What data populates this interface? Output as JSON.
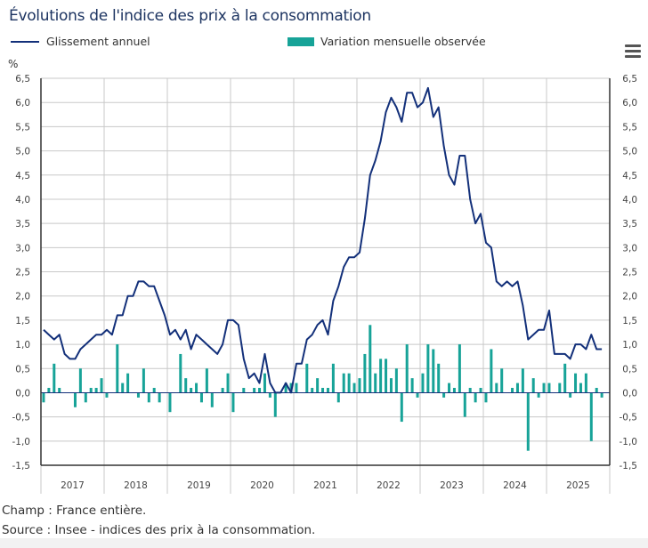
{
  "title": "Évolutions de l'indice des prix à la consommation",
  "legend": {
    "line_label": "Glissement annuel",
    "bar_label": "Variation mensuelle observée"
  },
  "menu_icon": "hamburger-menu-icon",
  "notes": {
    "champ": "Champ : France entière.",
    "source": "Source : Insee - indices des prix à la consommation."
  },
  "chart_data": {
    "type": "bar+line",
    "title": "Évolutions de l'indice des prix à la consommation",
    "ylabel": "%",
    "ylim": [
      -1.5,
      6.5
    ],
    "yticks": [
      "6,5",
      "6,0",
      "5,5",
      "5,0",
      "4,5",
      "4,0",
      "3,5",
      "3,0",
      "2,5",
      "2,0",
      "1,5",
      "1,0",
      "0,5",
      "0,0",
      "-0,5",
      "-1,0",
      "-1,5"
    ],
    "x_start": "2017-01",
    "x_end": "2025-11",
    "frequency": "monthly",
    "years": [
      "2017",
      "2018",
      "2019",
      "2020",
      "2021",
      "2022",
      "2023",
      "2024",
      "2025"
    ],
    "grid": true,
    "colors": {
      "line": "#13307a",
      "bars": "#17a398"
    },
    "series": [
      {
        "name": "Glissement annuel",
        "type": "line",
        "values": [
          1.3,
          1.2,
          1.1,
          1.2,
          0.8,
          0.7,
          0.7,
          0.9,
          1.0,
          1.1,
          1.2,
          1.2,
          1.3,
          1.2,
          1.6,
          1.6,
          2.0,
          2.0,
          2.3,
          2.3,
          2.2,
          2.2,
          1.9,
          1.6,
          1.2,
          1.3,
          1.1,
          1.3,
          0.9,
          1.2,
          1.1,
          1.0,
          0.9,
          0.8,
          1.0,
          1.5,
          1.5,
          1.4,
          0.7,
          0.3,
          0.4,
          0.2,
          0.8,
          0.2,
          0.0,
          0.0,
          0.2,
          0.0,
          0.6,
          0.6,
          1.1,
          1.2,
          1.4,
          1.5,
          1.2,
          1.9,
          2.2,
          2.6,
          2.8,
          2.8,
          2.9,
          3.6,
          4.5,
          4.8,
          5.2,
          5.8,
          6.1,
          5.9,
          5.6,
          6.2,
          6.2,
          5.9,
          6.0,
          6.3,
          5.7,
          5.9,
          5.1,
          4.5,
          4.3,
          4.9,
          4.9,
          4.0,
          3.5,
          3.7,
          3.1,
          3.0,
          2.3,
          2.2,
          2.3,
          2.2,
          2.3,
          1.8,
          1.1,
          1.2,
          1.3,
          1.3,
          1.7,
          0.8,
          0.8,
          0.8,
          0.7,
          1.0,
          1.0,
          0.9,
          1.2,
          0.9,
          0.9
        ]
      },
      {
        "name": "Variation mensuelle observée",
        "type": "bar",
        "values": [
          -0.2,
          0.1,
          0.6,
          0.1,
          0.0,
          0.0,
          -0.3,
          0.5,
          -0.2,
          0.1,
          0.1,
          0.3,
          -0.1,
          0.0,
          1.0,
          0.2,
          0.4,
          0.0,
          -0.1,
          0.5,
          -0.2,
          0.1,
          -0.2,
          0.0,
          -0.4,
          0.0,
          0.8,
          0.3,
          0.1,
          0.2,
          -0.2,
          0.5,
          -0.3,
          0.0,
          0.1,
          0.4,
          -0.4,
          0.0,
          0.1,
          0.0,
          0.1,
          0.1,
          0.4,
          -0.1,
          -0.5,
          0.0,
          0.2,
          0.2,
          0.2,
          0.0,
          0.6,
          0.1,
          0.3,
          0.1,
          0.1,
          0.6,
          -0.2,
          0.4,
          0.4,
          0.2,
          0.3,
          0.8,
          1.4,
          0.4,
          0.7,
          0.7,
          0.3,
          0.5,
          -0.6,
          1.0,
          0.3,
          -0.1,
          0.4,
          1.0,
          0.9,
          0.6,
          -0.1,
          0.2,
          0.1,
          1.0,
          -0.5,
          0.1,
          -0.2,
          0.1,
          -0.2,
          0.9,
          0.2,
          0.5,
          0.0,
          0.1,
          0.2,
          0.5,
          -1.2,
          0.3,
          -0.1,
          0.2,
          0.2,
          0.0,
          0.2,
          0.6,
          -0.1,
          0.4,
          0.2,
          0.4,
          -1.0,
          0.1,
          -0.1
        ]
      }
    ]
  }
}
